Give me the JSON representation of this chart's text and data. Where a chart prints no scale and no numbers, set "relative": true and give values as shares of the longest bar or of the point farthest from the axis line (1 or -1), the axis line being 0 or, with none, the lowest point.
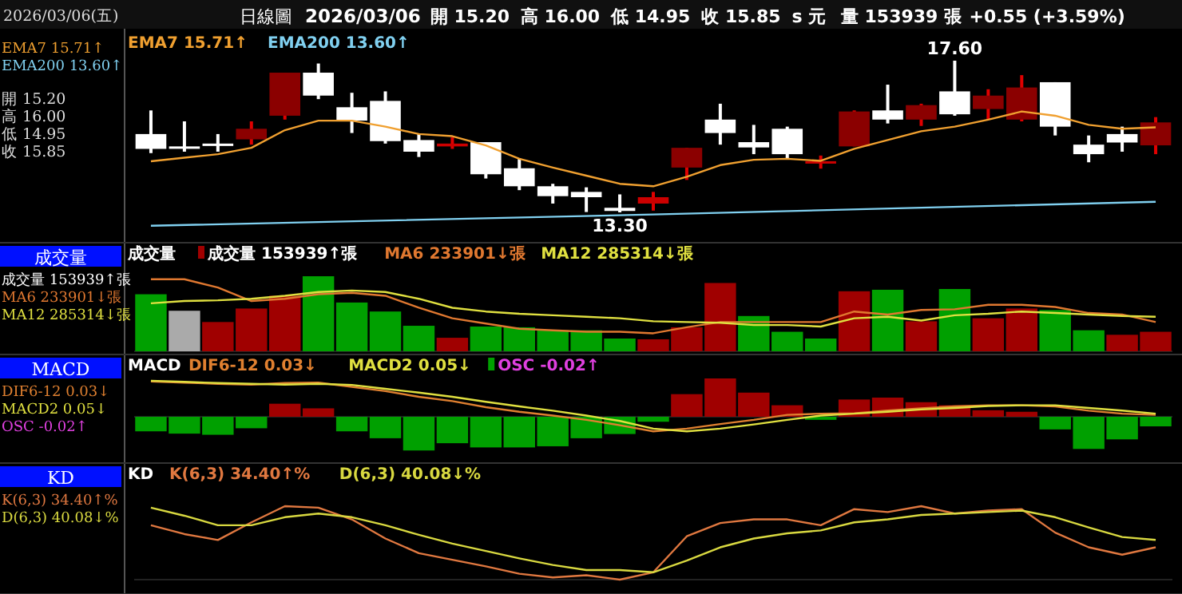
{
  "chart_data": [
    {
      "type": "candlestick",
      "title": "日線圖",
      "subtitle": "2026/03/06",
      "legend": "top left",
      "categories": [
        null,
        null,
        null,
        null,
        null,
        null,
        null,
        null,
        null,
        null,
        null,
        null,
        null,
        null,
        null,
        null,
        null,
        null,
        null,
        null,
        null,
        null,
        null,
        null,
        null,
        null,
        null,
        null,
        null,
        null,
        null
      ],
      "ohlc": [
        [
          15.52,
          16.19,
          14.98,
          15.1
        ],
        [
          15.17,
          15.88,
          15.02,
          15.13
        ],
        [
          15.25,
          15.52,
          15.02,
          15.2
        ],
        [
          15.37,
          15.88,
          15.22,
          15.67
        ],
        [
          16.04,
          17.26,
          15.93,
          17.26
        ],
        [
          17.26,
          17.52,
          16.51,
          16.61
        ],
        [
          16.28,
          16.69,
          15.55,
          15.9
        ],
        [
          16.46,
          16.73,
          15.25,
          15.32
        ],
        [
          15.35,
          15.52,
          14.87,
          15.02
        ],
        [
          15.17,
          15.43,
          15.1,
          15.25
        ],
        [
          15.29,
          15.29,
          14.26,
          14.38
        ],
        [
          14.55,
          14.84,
          13.93,
          14.04
        ],
        [
          14.04,
          14.11,
          13.55,
          13.76
        ],
        [
          13.88,
          14.01,
          13.31,
          13.73
        ],
        [
          13.43,
          13.81,
          13.3,
          13.34
        ],
        [
          13.55,
          13.88,
          13.35,
          13.73
        ],
        [
          14.57,
          15.13,
          14.22,
          15.13
        ],
        [
          15.93,
          16.38,
          15.22,
          15.55
        ],
        [
          15.29,
          15.78,
          14.95,
          15.14
        ],
        [
          15.67,
          15.73,
          14.82,
          14.95
        ],
        [
          14.69,
          14.91,
          14.54,
          14.75
        ],
        [
          15.17,
          16.19,
          15.17,
          16.16
        ],
        [
          16.19,
          16.92,
          15.82,
          15.93
        ],
        [
          15.93,
          16.38,
          15.75,
          16.34
        ],
        [
          16.73,
          17.6,
          16.04,
          16.08
        ],
        [
          16.23,
          16.79,
          15.93,
          16.61
        ],
        [
          15.93,
          17.19,
          15.88,
          16.84
        ],
        [
          16.99,
          16.99,
          15.48,
          15.73
        ],
        [
          15.22,
          15.48,
          14.72,
          14.95
        ],
        [
          15.52,
          15.73,
          15.02,
          15.28
        ],
        [
          15.2,
          16.0,
          14.95,
          15.85
        ]
      ],
      "colors": [
        "#ffffff",
        "#ffffff",
        "#ffffff",
        "#8b0000",
        "#8b0000",
        "#ffffff",
        "#ffffff",
        "#ffffff",
        "#ffffff",
        "#cc0000",
        "#ffffff",
        "#ffffff",
        "#ffffff",
        "#ffffff",
        "#ffffff",
        "#cc0000",
        "#8b0000",
        "#ffffff",
        "#ffffff",
        "#ffffff",
        "#cc0000",
        "#8b0000",
        "#ffffff",
        "#8b0000",
        "#ffffff",
        "#8b0000",
        "#8b0000",
        "#ffffff",
        "#ffffff",
        "#ffffff",
        "#8b0000"
      ],
      "series": [
        {
          "name": "EMA7 15.71↑",
          "type": "line",
          "color": "#f0a030",
          "values": [
            14.75,
            14.85,
            14.95,
            15.13,
            15.63,
            15.9,
            15.9,
            15.73,
            15.52,
            15.46,
            15.2,
            14.82,
            14.57,
            14.34,
            14.11,
            14.04,
            14.31,
            14.64,
            14.79,
            14.82,
            14.76,
            15.1,
            15.35,
            15.6,
            15.73,
            15.93,
            16.16,
            16.04,
            15.78,
            15.67,
            15.71
          ]
        },
        {
          "name": "EMA200 13.60↑",
          "type": "line",
          "color": "#80d0f0",
          "values": [
            12.92,
            null,
            null,
            null,
            null,
            null,
            null,
            null,
            null,
            null,
            null,
            null,
            null,
            null,
            null,
            13.24,
            null,
            null,
            null,
            null,
            null,
            null,
            null,
            null,
            null,
            null,
            null,
            null,
            null,
            null,
            13.6
          ]
        }
      ],
      "annotations": [
        "2026/03/06(五)",
        "開 15.20",
        "高 16.00",
        "低 14.95",
        "收 15.85",
        "s 元",
        "量 153939 張",
        "+0.55 (+3.59%)",
        {
          "text": "17.60",
          "y": 17.6
        },
        {
          "text": "13.30",
          "y": 13.3
        }
      ]
    },
    {
      "type": "bar",
      "title": "成交量",
      "relative": true,
      "legend": "top left",
      "categories": [
        null,
        null,
        null,
        null,
        null,
        null,
        null,
        null,
        null,
        null,
        null,
        null,
        null,
        null,
        null,
        null,
        null,
        null,
        null,
        null,
        null,
        null,
        null,
        null,
        null,
        null,
        null,
        null,
        null,
        null,
        null
      ],
      "series": [
        {
          "name": "成交量 153939↑張",
          "colors": [
            "#00a000",
            "#aaaaaa",
            "#a00000",
            "#a00000",
            "#a00000",
            "#00a000",
            "#00a000",
            "#00a000",
            "#00a000",
            "#a00000",
            "#00a000",
            "#00a000",
            "#00a000",
            "#00a000",
            "#00a000",
            "#a00000",
            "#a00000",
            "#a00000",
            "#00a000",
            "#00a000",
            "#00a000",
            "#a00000",
            "#00a000",
            "#a00000",
            "#00a000",
            "#a00000",
            "#a00000",
            "#00a000",
            "#00a000",
            "#a00000",
            "#a00000"
          ],
          "values": [
            0.76,
            0.54,
            0.39,
            0.57,
            0.74,
            1,
            0.65,
            0.53,
            0.34,
            0.18,
            0.33,
            0.32,
            0.28,
            0.28,
            0.17,
            0.16,
            0.32,
            0.91,
            0.47,
            0.26,
            0.17,
            0.8,
            0.82,
            0.4,
            0.83,
            0.44,
            0.57,
            0.55,
            0.28,
            0.22,
            0.26
          ]
        },
        {
          "name": "MA6 233901↓張",
          "type": "line",
          "color": "#e07830",
          "values": [
            0.96,
            0.96,
            0.85,
            0.67,
            0.7,
            0.76,
            0.78,
            0.74,
            0.58,
            0.44,
            0.37,
            0.3,
            0.28,
            0.26,
            0.26,
            0.24,
            0.32,
            0.39,
            0.39,
            0.39,
            0.39,
            0.53,
            0.49,
            0.55,
            0.56,
            0.62,
            0.62,
            0.59,
            0.51,
            0.49,
            0.39
          ]
        },
        {
          "name": "MA12 285314↓張",
          "type": "line",
          "color": "#e0e040",
          "values": [
            0.64,
            0.67,
            0.68,
            0.7,
            0.74,
            0.79,
            0.81,
            0.79,
            0.7,
            0.58,
            0.53,
            0.5,
            0.48,
            0.46,
            0.44,
            0.4,
            0.39,
            0.38,
            0.35,
            0.35,
            0.33,
            0.44,
            0.46,
            0.41,
            0.48,
            0.5,
            0.53,
            0.51,
            0.49,
            0.47,
            0.46
          ]
        }
      ]
    },
    {
      "type": "bar",
      "title": "MACD",
      "relative": true,
      "legend": "top left",
      "categories": [
        null,
        null,
        null,
        null,
        null,
        null,
        null,
        null,
        null,
        null,
        null,
        null,
        null,
        null,
        null,
        null,
        null,
        null,
        null,
        null,
        null,
        null,
        null,
        null,
        null,
        null,
        null,
        null,
        null,
        null,
        null
      ],
      "series": [
        {
          "name": "DIF6-12 0.03↓",
          "type": "line",
          "color": "#e08030",
          "values": [
            0.92,
            0.89,
            0.86,
            0.84,
            0.88,
            0.89,
            0.78,
            0.67,
            0.52,
            0.41,
            0.25,
            0.13,
            0.03,
            -0.08,
            -0.22,
            -0.38,
            -0.31,
            -0.19,
            -0.08,
            0.05,
            0.08,
            0.09,
            0.16,
            0.22,
            0.27,
            0.3,
            0.3,
            0.27,
            0.16,
            0.08,
            0.05
          ]
        },
        {
          "name": "MACD2 0.05↓",
          "type": "line",
          "color": "#e0e040",
          "values": [
            0.94,
            0.91,
            0.88,
            0.86,
            0.84,
            0.86,
            0.83,
            0.73,
            0.63,
            0.52,
            0.39,
            0.27,
            0.16,
            0.03,
            -0.11,
            -0.31,
            -0.38,
            -0.31,
            -0.2,
            -0.08,
            0.03,
            0.08,
            0.13,
            0.19,
            0.23,
            0.28,
            0.3,
            0.3,
            0.23,
            0.16,
            0.08
          ]
        },
        {
          "name": "OSC -0.02↑",
          "color": "#e040e0",
          "colors": [
            "#00a000",
            "#00a000",
            "#00a000",
            "#00a000",
            "#a00000",
            "#a00000",
            "#00a000",
            "#00a000",
            "#00a000",
            "#00a000",
            "#00a000",
            "#00a000",
            "#00a000",
            "#00a000",
            "#00a000",
            "#00a000",
            "#a00000",
            "#a00000",
            "#a00000",
            "#a00000",
            "#00a000",
            "#a00000",
            "#a00000",
            "#a00000",
            "#a00000",
            "#a00000",
            "#a00000",
            "#00a000",
            "#00a000",
            "#00a000",
            "#00a000"
          ],
          "values": [
            -0.38,
            -0.44,
            -0.47,
            -0.3,
            0.34,
            0.22,
            -0.38,
            -0.56,
            -0.88,
            -0.69,
            -0.8,
            -0.8,
            -0.77,
            -0.56,
            -0.45,
            -0.13,
            0.59,
            1,
            0.63,
            0.3,
            -0.08,
            0.45,
            0.5,
            0.38,
            0.3,
            0.17,
            0.13,
            -0.33,
            -0.84,
            -0.59,
            -0.25
          ]
        }
      ]
    },
    {
      "type": "line",
      "title": "KD",
      "relative": true,
      "legend": "top left",
      "categories": [
        null,
        null,
        null,
        null,
        null,
        null,
        null,
        null,
        null,
        null,
        null,
        null,
        null,
        null,
        null,
        null,
        null,
        null,
        null,
        null,
        null,
        null,
        null,
        null,
        null,
        null,
        null,
        null,
        null,
        null,
        null
      ],
      "series": [
        {
          "name": "K(6,3) 34.40↑%",
          "color": "#e07840",
          "values": [
            0.74,
            0.62,
            0.54,
            0.78,
            1,
            0.98,
            0.82,
            0.56,
            0.36,
            0.27,
            0.18,
            0.08,
            0.03,
            0.06,
            0,
            0.1,
            0.59,
            0.77,
            0.82,
            0.82,
            0.74,
            0.96,
            0.92,
            1,
            0.9,
            0.94,
            0.96,
            0.64,
            0.44,
            0.34,
            0.44
          ]
        },
        {
          "name": "D(6,3) 40.08↓%",
          "color": "#d8d840",
          "values": [
            0.98,
            0.87,
            0.74,
            0.74,
            0.85,
            0.9,
            0.85,
            0.74,
            0.61,
            0.49,
            0.39,
            0.29,
            0.2,
            0.13,
            0.13,
            0.1,
            0.26,
            0.44,
            0.56,
            0.63,
            0.67,
            0.78,
            0.82,
            0.88,
            0.9,
            0.92,
            0.94,
            0.85,
            0.71,
            0.58,
            0.54
          ]
        }
      ]
    }
  ]
}
